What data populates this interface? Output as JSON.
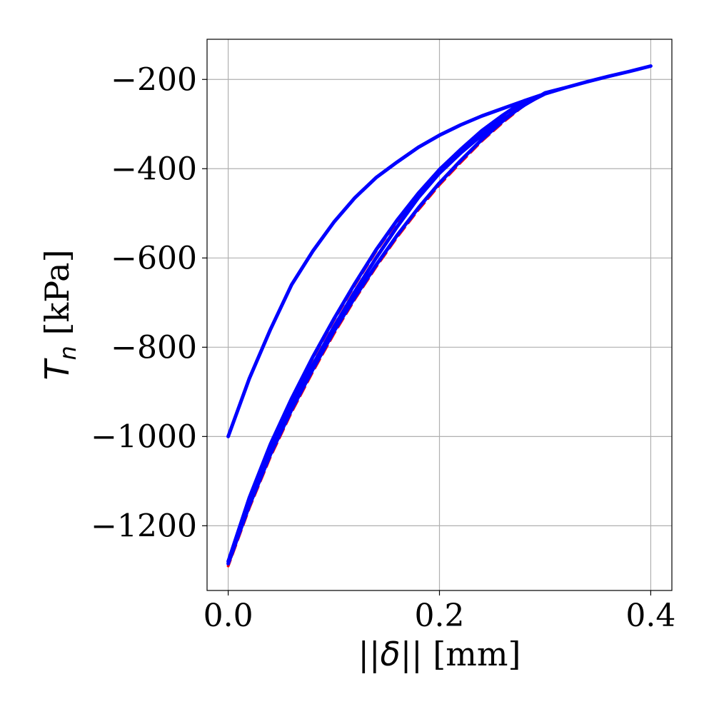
{
  "chart_data": {
    "type": "line",
    "title": "",
    "xlabel": "||δ|| [mm]",
    "ylabel": "T_n [kPa]",
    "xlim": [
      -0.02,
      0.42
    ],
    "ylim": [
      -1345,
      -110
    ],
    "xticks": [
      0.0,
      0.2,
      0.4
    ],
    "xtick_labels": [
      "0.0",
      "0.2",
      "0.4"
    ],
    "yticks": [
      -200,
      -400,
      -600,
      -800,
      -1000,
      -1200
    ],
    "ytick_labels": [
      "−200",
      "−400",
      "−600",
      "−800",
      "−1000",
      "−1200"
    ],
    "grid": true,
    "legend": "none",
    "series": [
      {
        "color": "#ff0000",
        "style": "dashed",
        "x": [
          0.0,
          0.02,
          0.04,
          0.06,
          0.08,
          0.1,
          0.12,
          0.14,
          0.16,
          0.18,
          0.2,
          0.22,
          0.24,
          0.26,
          0.28,
          0.3,
          0.32,
          0.34,
          0.36,
          0.38,
          0.4,
          0.38,
          0.36,
          0.34,
          0.32,
          0.3,
          0.28,
          0.26,
          0.24,
          0.22,
          0.2,
          0.18,
          0.16,
          0.14,
          0.12,
          0.1,
          0.08,
          0.06,
          0.04,
          0.02,
          0.0,
          0.02,
          0.04,
          0.06,
          0.08,
          0.1,
          0.12,
          0.14,
          0.16,
          0.18,
          0.2,
          0.22,
          0.24,
          0.26,
          0.28,
          0.3,
          0.28,
          0.26,
          0.24,
          0.22,
          0.2,
          0.18,
          0.16,
          0.14,
          0.12,
          0.1,
          0.08,
          0.06,
          0.04,
          0.02,
          0.0
        ],
        "y": [
          -1000,
          -870,
          -760,
          -660,
          -585,
          -520,
          -465,
          -420,
          -385,
          -352,
          -325,
          -302,
          -282,
          -265,
          -248,
          -232,
          -218,
          -205,
          -193,
          -182,
          -170,
          -182,
          -193,
          -205,
          -218,
          -230,
          -258,
          -290,
          -325,
          -365,
          -410,
          -465,
          -530,
          -600,
          -675,
          -755,
          -840,
          -930,
          -1030,
          -1150,
          -1290,
          -1160,
          -1045,
          -945,
          -855,
          -770,
          -692,
          -620,
          -553,
          -492,
          -436,
          -386,
          -338,
          -296,
          -258,
          -232,
          -250,
          -282,
          -318,
          -360,
          -405,
          -458,
          -518,
          -585,
          -660,
          -740,
          -825,
          -918,
          -1020,
          -1140,
          -1285
        ]
      },
      {
        "color": "#0000ff",
        "style": "solid",
        "x": [
          0.0,
          0.02,
          0.04,
          0.06,
          0.08,
          0.1,
          0.12,
          0.14,
          0.16,
          0.18,
          0.2,
          0.22,
          0.24,
          0.26,
          0.28,
          0.3,
          0.32,
          0.34,
          0.36,
          0.38,
          0.4,
          0.38,
          0.36,
          0.34,
          0.32,
          0.3,
          0.28,
          0.26,
          0.24,
          0.22,
          0.2,
          0.18,
          0.16,
          0.14,
          0.12,
          0.1,
          0.08,
          0.06,
          0.04,
          0.02,
          0.0,
          0.02,
          0.04,
          0.06,
          0.08,
          0.1,
          0.12,
          0.14,
          0.16,
          0.18,
          0.2,
          0.22,
          0.24,
          0.26,
          0.28,
          0.3,
          0.28,
          0.26,
          0.24,
          0.22,
          0.2,
          0.18,
          0.16,
          0.14,
          0.12,
          0.1,
          0.08,
          0.06,
          0.04,
          0.02,
          0.0
        ],
        "y": [
          -1000,
          -870,
          -760,
          -660,
          -585,
          -520,
          -465,
          -420,
          -385,
          -352,
          -325,
          -302,
          -282,
          -265,
          -248,
          -232,
          -218,
          -205,
          -193,
          -182,
          -170,
          -182,
          -193,
          -205,
          -218,
          -230,
          -258,
          -290,
          -325,
          -365,
          -410,
          -465,
          -530,
          -600,
          -675,
          -755,
          -840,
          -930,
          -1030,
          -1150,
          -1285,
          -1155,
          -1040,
          -940,
          -850,
          -765,
          -688,
          -616,
          -549,
          -488,
          -432,
          -382,
          -335,
          -293,
          -256,
          -232,
          -248,
          -280,
          -315,
          -357,
          -402,
          -455,
          -515,
          -582,
          -657,
          -737,
          -822,
          -915,
          -1017,
          -1137,
          -1280
        ]
      }
    ]
  }
}
